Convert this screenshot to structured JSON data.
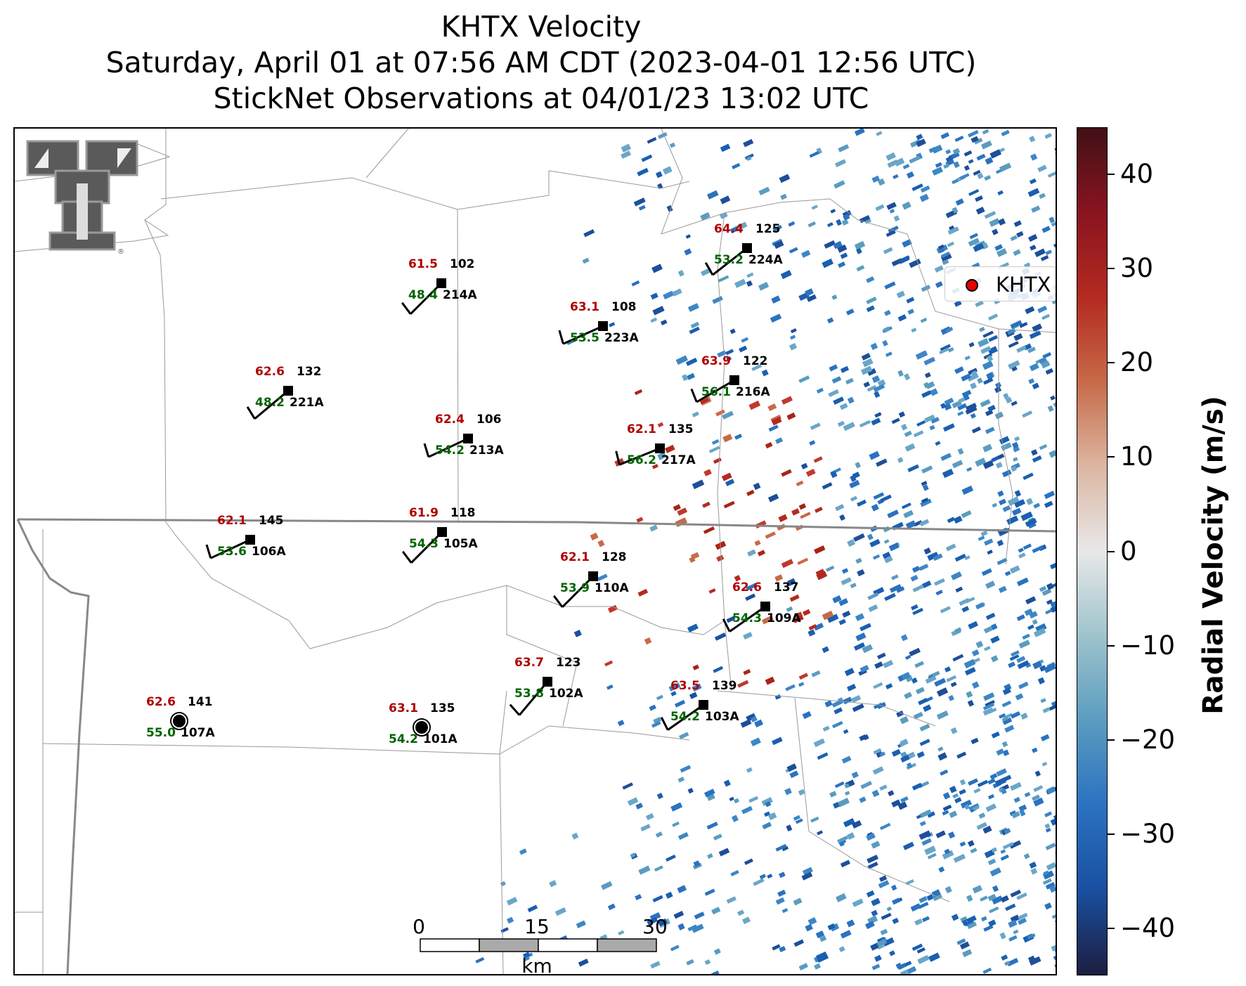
{
  "title": {
    "line1": "KHTX Velocity",
    "line2": "Saturday, April 01 at 07:56 AM CDT (2023-04-01 12:56 UTC)",
    "line3": "StickNet Observations at 04/01/23 13:02 UTC"
  },
  "legend": {
    "label": "KHTX",
    "marker_color": "#e60000"
  },
  "colorbar": {
    "title": "Radial Velocity (m/s)",
    "range": [
      -45,
      45
    ],
    "ticks": [
      "40",
      "30",
      "20",
      "10",
      "0",
      "−10",
      "−20",
      "−30",
      "−40"
    ],
    "tick_values": [
      40,
      30,
      20,
      10,
      0,
      -10,
      -20,
      -30,
      -40
    ],
    "colors": [
      "#1c1e40",
      "#1a4fa0",
      "#2a72c0",
      "#5a9cc0",
      "#9ec3cc",
      "#e8e8e8",
      "#dcb6a2",
      "#c76a48",
      "#b42a20",
      "#8a1420",
      "#401016"
    ]
  },
  "scalebar": {
    "ticks": [
      "0",
      "15",
      "30"
    ],
    "unit": "km"
  },
  "logo": {
    "name": "texas-tech-double-t-logo",
    "mark": "®"
  },
  "stations": [
    {
      "id": "214A",
      "temp": "61.5",
      "dew": "48.4",
      "pressure": "102"
    },
    {
      "id": "224A",
      "temp": "64.4",
      "dew": "53.2",
      "pressure": "125"
    },
    {
      "id": "223A",
      "temp": "63.1",
      "dew": "53.5",
      "pressure": "108"
    },
    {
      "id": "221A",
      "temp": "62.6",
      "dew": "48.2",
      "pressure": "132"
    },
    {
      "id": "216A",
      "temp": "63.9",
      "dew": "56.1",
      "pressure": "122"
    },
    {
      "id": "213A",
      "temp": "62.4",
      "dew": "54.2",
      "pressure": "106"
    },
    {
      "id": "217A",
      "temp": "62.1",
      "dew": "56.2",
      "pressure": "135"
    },
    {
      "id": "106A",
      "temp": "62.1",
      "dew": "53.6",
      "pressure": "145"
    },
    {
      "id": "105A",
      "temp": "61.9",
      "dew": "54.3",
      "pressure": "118"
    },
    {
      "id": "110A",
      "temp": "62.1",
      "dew": "53.9",
      "pressure": "128"
    },
    {
      "id": "109A",
      "temp": "62.6",
      "dew": "54.3",
      "pressure": "137"
    },
    {
      "id": "102A",
      "temp": "63.7",
      "dew": "53.8",
      "pressure": "123"
    },
    {
      "id": "103A",
      "temp": "63.5",
      "dew": "54.2",
      "pressure": "139"
    },
    {
      "id": "107A",
      "temp": "62.6",
      "dew": "55.0",
      "pressure": "141"
    },
    {
      "id": "101A",
      "temp": "63.1",
      "dew": "54.2",
      "pressure": "135"
    }
  ],
  "colors": {
    "temp": "#b00000",
    "dew": "#006400",
    "station_text": "#000000"
  }
}
